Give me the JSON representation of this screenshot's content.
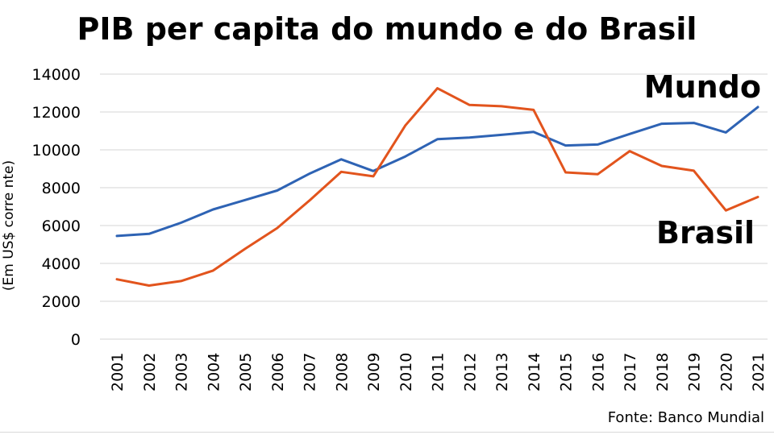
{
  "chart_data": {
    "type": "line",
    "title": "PIB per capita do mundo e do Brasil",
    "ylabel": "(Em US$ corre nte)",
    "xlabel": "",
    "source": "Fonte: Banco Mundial",
    "ylim": [
      0,
      14000
    ],
    "yticks": [
      0,
      2000,
      4000,
      6000,
      8000,
      10000,
      12000,
      14000
    ],
    "grid": true,
    "categories": [
      "2001",
      "2002",
      "2003",
      "2004",
      "2005",
      "2006",
      "2007",
      "2008",
      "2009",
      "2010",
      "2011",
      "2012",
      "2013",
      "2014",
      "2015",
      "2016",
      "2017",
      "2018",
      "2019",
      "2020",
      "2021"
    ],
    "series": [
      {
        "name": "Mundo",
        "color": "#2e63b4",
        "values": [
          5450,
          5560,
          6150,
          6850,
          7350,
          7850,
          8730,
          9500,
          8880,
          9650,
          10560,
          10650,
          10790,
          10950,
          10230,
          10280,
          10840,
          11380,
          11420,
          10920,
          12260
        ]
      },
      {
        "name": "Brasil",
        "color": "#e2541d",
        "values": [
          3160,
          2830,
          3070,
          3620,
          4770,
          5870,
          7310,
          8840,
          8600,
          11290,
          13250,
          12370,
          12300,
          12110,
          8810,
          8710,
          9930,
          9150,
          8900,
          6800,
          7510
        ]
      }
    ]
  }
}
